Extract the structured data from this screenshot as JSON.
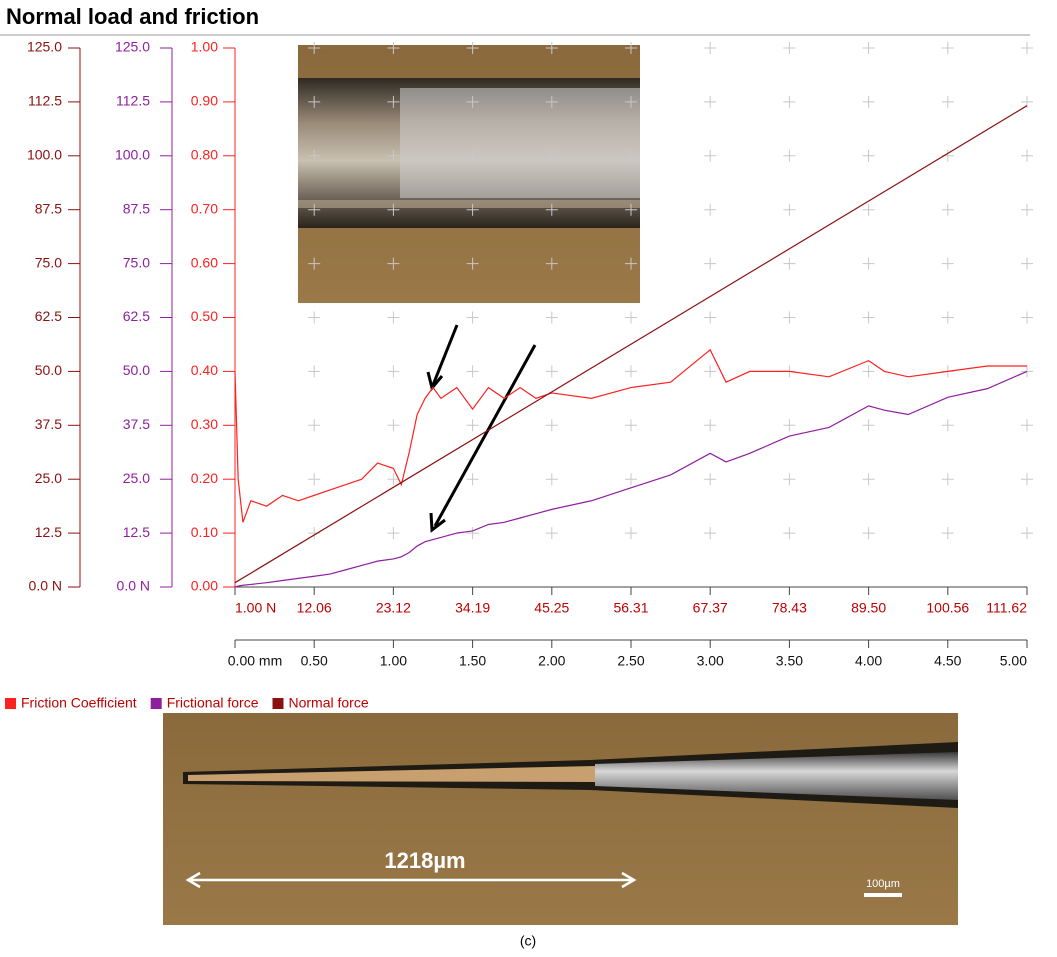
{
  "chart_data": {
    "type": "line",
    "title": "Normal load and friction",
    "xlim": [
      0,
      5
    ],
    "xticks": [
      {
        "value": 0,
        "label": "0.00 mm"
      },
      {
        "value": 0.5,
        "label": "0.50"
      },
      {
        "value": 1,
        "label": "1.00"
      },
      {
        "value": 1.5,
        "label": "1.50"
      },
      {
        "value": 2,
        "label": "2.00"
      },
      {
        "value": 2.5,
        "label": "2.50"
      },
      {
        "value": 3,
        "label": "3.00"
      },
      {
        "value": 3.5,
        "label": "3.50"
      },
      {
        "value": 4,
        "label": "4.00"
      },
      {
        "value": 4.5,
        "label": "4.50"
      },
      {
        "value": 5,
        "label": "5.00"
      }
    ],
    "x2lim": [
      1,
      111.62
    ],
    "x2ticks": [
      {
        "value": 1,
        "label": "1.00 N"
      },
      12.06,
      23.12,
      34.19,
      45.25,
      56.31,
      67.37,
      78.43,
      {
        "value": 89.5,
        "label": "89.50"
      },
      100.56,
      111.62
    ],
    "ylim": [
      0,
      1
    ],
    "yticks": [
      {
        "value": 0,
        "label": "0.00"
      },
      {
        "value": 0.1,
        "label": "0.10"
      },
      {
        "value": 0.2,
        "label": "0.20"
      },
      {
        "value": 0.3,
        "label": "0.30"
      },
      {
        "value": 0.4,
        "label": "0.40"
      },
      {
        "value": 0.5,
        "label": "0.50"
      },
      {
        "value": 0.6,
        "label": "0.60"
      },
      {
        "value": 0.7,
        "label": "0.70"
      },
      {
        "value": 0.8,
        "label": "0.80"
      },
      {
        "value": 0.9,
        "label": "0.90"
      },
      {
        "value": 1,
        "label": "1.00"
      }
    ],
    "y2lim": [
      0,
      125
    ],
    "y2ticks": [
      {
        "value": 0,
        "label": "0.0 N"
      },
      12.5,
      {
        "value": 25,
        "label": "25.0"
      },
      37.5,
      {
        "value": 50,
        "label": "50.0"
      },
      62.5,
      {
        "value": 75,
        "label": "75.0"
      },
      87.5,
      {
        "value": 100,
        "label": "100.0"
      },
      112.5,
      {
        "value": 125,
        "label": "125.0"
      }
    ],
    "y3lim": [
      0,
      125
    ],
    "y3ticks": [
      {
        "value": 0,
        "label": "0.0 N"
      },
      12.5,
      {
        "value": 25,
        "label": "25.0"
      },
      37.5,
      {
        "value": 50,
        "label": "50.0"
      },
      62.5,
      {
        "value": 75,
        "label": "75.0"
      },
      87.5,
      {
        "value": 100,
        "label": "100.0"
      },
      112.5,
      {
        "value": 125,
        "label": "125.0"
      }
    ],
    "grid": true,
    "x": [
      0,
      0.02,
      0.05,
      0.1,
      0.2,
      0.3,
      0.4,
      0.5,
      0.6,
      0.7,
      0.8,
      0.9,
      1.0,
      1.05,
      1.1,
      1.15,
      1.2,
      1.25,
      1.3,
      1.4,
      1.5,
      1.6,
      1.7,
      1.8,
      1.9,
      2.0,
      2.25,
      2.5,
      2.75,
      3.0,
      3.1,
      3.25,
      3.5,
      3.75,
      4.0,
      4.1,
      4.25,
      4.5,
      4.75,
      5.0
    ],
    "series": [
      {
        "name": "Friction Coefficient",
        "color": "#ff2020",
        "axis": "y",
        "values": [
          0.4,
          0.2,
          0.12,
          0.16,
          0.15,
          0.17,
          0.16,
          0.17,
          0.18,
          0.19,
          0.2,
          0.23,
          0.22,
          0.19,
          0.25,
          0.32,
          0.35,
          0.37,
          0.35,
          0.37,
          0.33,
          0.37,
          0.35,
          0.37,
          0.35,
          0.36,
          0.35,
          0.37,
          0.38,
          0.44,
          0.38,
          0.4,
          0.4,
          0.39,
          0.42,
          0.4,
          0.39,
          0.4,
          0.41,
          0.41
        ]
      },
      {
        "name": "Frictional force",
        "color": "#8e1f9e",
        "axis": "y2",
        "values": [
          0,
          0.2,
          0.4,
          0.6,
          1,
          1.5,
          2,
          2.5,
          3,
          4,
          5,
          6,
          6.5,
          7,
          8,
          9.5,
          10.5,
          11,
          11.5,
          12.5,
          13,
          14.5,
          15,
          16,
          17,
          18,
          20,
          23,
          26,
          31,
          29,
          31,
          35,
          37,
          42,
          41,
          40,
          44,
          46,
          50
        ]
      },
      {
        "name": "Normal force",
        "color": "#8b1010",
        "axis": "y3",
        "x": [
          0,
          5
        ],
        "values": [
          1,
          111.62
        ]
      }
    ]
  },
  "image_labels": {
    "scratch_length": "1218µm",
    "scale_bar": "100µm",
    "caption": "(c)"
  }
}
